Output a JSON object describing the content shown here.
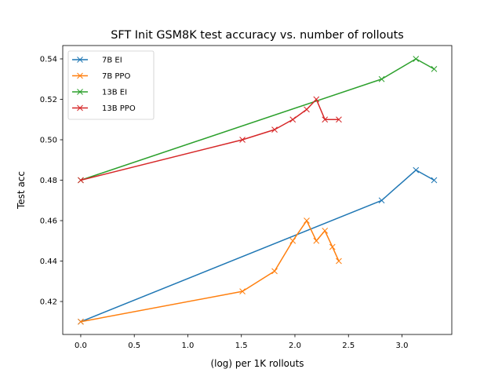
{
  "chart_data": {
    "type": "line",
    "title": "SFT Init GSM8K test accuracy vs. number of rollouts",
    "xlabel": "(log) per 1K rollouts",
    "ylabel": "Test acc",
    "xlim": [
      -0.168,
      3.465
    ],
    "ylim": [
      0.4037,
      0.5466
    ],
    "xticks": [
      0.0,
      0.5,
      1.0,
      1.5,
      2.0,
      2.5,
      3.0
    ],
    "xtick_labels": [
      "0.0",
      "0.5",
      "1.0",
      "1.5",
      "2.0",
      "2.5",
      "3.0"
    ],
    "yticks": [
      0.42,
      0.44,
      0.46,
      0.48,
      0.5,
      0.52,
      0.54
    ],
    "ytick_labels": [
      "0.42",
      "0.44",
      "0.46",
      "0.48",
      "0.50",
      "0.52",
      "0.54"
    ],
    "grid": false,
    "legend_placement": "upper-left",
    "marker": "x",
    "series": [
      {
        "name": "7B EI",
        "color": "#1f77b4",
        "x": [
          0,
          2.81,
          3.13,
          3.3
        ],
        "y": [
          0.41,
          0.47,
          0.485,
          0.48
        ]
      },
      {
        "name": "7B PPO",
        "color": "#ff7f0e",
        "x": [
          0,
          1.51,
          1.81,
          1.98,
          2.11,
          2.2,
          2.28,
          2.35,
          2.41
        ],
        "y": [
          0.41,
          0.425,
          0.435,
          0.45,
          0.46,
          0.45,
          0.455,
          0.447,
          0.44
        ]
      },
      {
        "name": "13B EI",
        "color": "#2ca02c",
        "x": [
          0,
          2.81,
          3.13,
          3.3
        ],
        "y": [
          0.48,
          0.53,
          0.54,
          0.535
        ]
      },
      {
        "name": "13B PPO",
        "color": "#d62728",
        "x": [
          0,
          1.51,
          1.81,
          1.98,
          2.11,
          2.2,
          2.28,
          2.41
        ],
        "y": [
          0.48,
          0.5,
          0.505,
          0.51,
          0.515,
          0.52,
          0.51,
          0.51
        ]
      }
    ]
  }
}
